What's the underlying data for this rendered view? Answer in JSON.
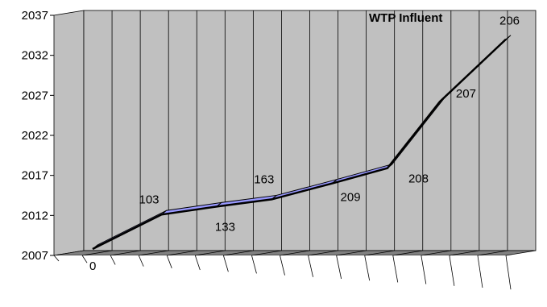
{
  "chart_data": {
    "type": "line",
    "title": "WTP Influent",
    "xlabel": "",
    "ylabel": "",
    "ylim": [
      2007,
      2037
    ],
    "y_ticks": [
      2007,
      2012,
      2017,
      2022,
      2027,
      2032,
      2037
    ],
    "grid": true,
    "legend": "none",
    "three_d": true,
    "colors": {
      "wall": "#c0c0c0",
      "floor": "#808080",
      "ribbon": "#9999ff",
      "line": "#000000"
    },
    "points": [
      {
        "x": 0,
        "y": 2007.0,
        "label": "0"
      },
      {
        "x": 2.5,
        "y": 2011.3,
        "label": "103"
      },
      {
        "x": 4.5,
        "y": 2012.3,
        "label": "133"
      },
      {
        "x": 6.5,
        "y": 2013.2,
        "label": "163"
      },
      {
        "x": 8.7,
        "y": 2015.2,
        "label": "209"
      },
      {
        "x": 10.7,
        "y": 2017.1,
        "label": "208"
      },
      {
        "x": 12.6,
        "y": 2025.4,
        "label": "207"
      },
      {
        "x": 15.0,
        "y": 2033.2,
        "label": "206"
      }
    ]
  }
}
